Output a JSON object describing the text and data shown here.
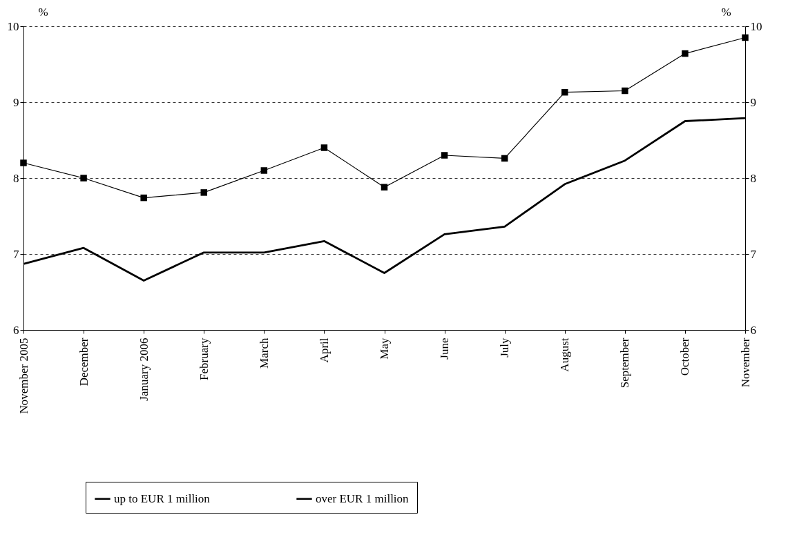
{
  "chart_data": {
    "type": "line",
    "ylabel": "%",
    "y2label": "%",
    "categories": [
      "November 2005",
      "December",
      "January 2006",
      "February",
      "March",
      "April",
      "May",
      "June",
      "July",
      "August",
      "September",
      "October",
      "November"
    ],
    "series": [
      {
        "name": "up to EUR 1 million",
        "color": "#000000",
        "marker": "square",
        "values": [
          8.2,
          8.0,
          7.74,
          7.81,
          8.1,
          8.4,
          7.88,
          8.3,
          8.26,
          9.13,
          9.15,
          9.64,
          9.85
        ]
      },
      {
        "name": "over EUR 1 million",
        "color": "#000000",
        "marker": "none",
        "values": [
          6.87,
          7.08,
          6.65,
          7.02,
          7.02,
          7.17,
          6.75,
          7.26,
          7.36,
          7.92,
          8.23,
          8.75,
          8.79
        ]
      }
    ],
    "ylim": [
      6,
      10
    ],
    "yticks": [
      6,
      7,
      8,
      9,
      10
    ],
    "y2lim": [
      6,
      10
    ],
    "y2ticks": [
      6,
      7,
      8,
      9,
      10
    ],
    "grid": "y",
    "line_style": "solid",
    "legend": "bottom"
  }
}
